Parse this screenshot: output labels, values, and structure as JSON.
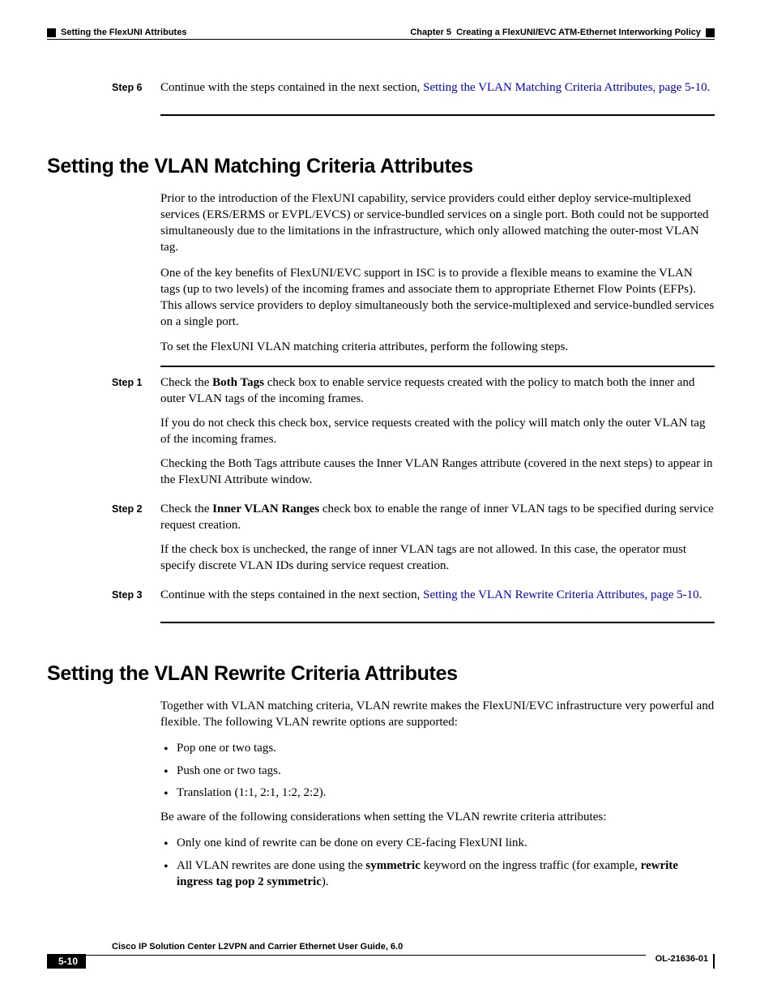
{
  "header": {
    "section_title": "Setting the FlexUNI Attributes",
    "chapter_label": "Chapter 5",
    "chapter_title": "Creating a FlexUNI/EVC ATM-Ethernet Interworking Policy"
  },
  "top_step": {
    "label": "Step 6",
    "text_prefix": "Continue with the steps contained in the next section, ",
    "link_text": "Setting the VLAN Matching Criteria Attributes, page 5-10",
    "text_suffix": "."
  },
  "section1": {
    "heading": "Setting the VLAN Matching Criteria Attributes",
    "para1": "Prior to the introduction of the FlexUNI capability, service providers could either deploy service-multiplexed services (ERS/ERMS or EVPL/EVCS) or service-bundled services on a single port. Both could not be supported simultaneously due to the limitations in the infrastructure, which only allowed matching the outer-most VLAN tag.",
    "para2": "One of the key benefits of FlexUNI/EVC support in ISC is to provide a flexible means to examine the VLAN tags (up to two levels) of the incoming frames and associate them to appropriate Ethernet Flow Points (EFPs). This allows service providers to deploy simultaneously both the service-multiplexed and service-bundled services on a single port.",
    "para3": "To set the FlexUNI VLAN matching criteria attributes, perform the following steps.",
    "steps": [
      {
        "label": "Step 1",
        "p1_pre": "Check the ",
        "p1_bold": "Both Tags",
        "p1_post": " check box to enable service requests created with the policy to match both the inner and outer VLAN tags of the incoming frames.",
        "p2": "If you do not check this check box, service requests created with the policy will match only the outer VLAN tag of the incoming frames.",
        "p3": "Checking the Both Tags attribute causes the Inner VLAN Ranges attribute (covered in the next steps) to appear in the FlexUNI Attribute window."
      },
      {
        "label": "Step 2",
        "p1_pre": "Check the ",
        "p1_bold": "Inner VLAN Ranges",
        "p1_post": " check box to enable the range of inner VLAN tags to be specified during service request creation.",
        "p2": "If the check box is unchecked, the range of inner VLAN tags are not allowed. In this case, the operator must specify discrete VLAN IDs during service request creation."
      },
      {
        "label": "Step 3",
        "p1_pre": "Continue with the steps contained in the next section, ",
        "link_text": "Setting the VLAN Rewrite Criteria Attributes, page 5-10",
        "p1_post": "."
      }
    ]
  },
  "section2": {
    "heading": "Setting the VLAN Rewrite Criteria Attributes",
    "para1": "Together with VLAN matching criteria, VLAN rewrite makes the FlexUNI/EVC infrastructure very powerful and flexible. The following VLAN rewrite options are supported:",
    "bullets1": [
      "Pop one or two tags.",
      "Push one or two tags.",
      "Translation (1:1, 2:1, 1:2, 2:2)."
    ],
    "para2": "Be aware of the following considerations when setting the VLAN rewrite criteria attributes:",
    "bullets2": [
      {
        "plain": "Only one kind of rewrite can be done on every CE-facing FlexUNI link."
      },
      {
        "pre": "All VLAN rewrites are done using the ",
        "bold1": "symmetric",
        "mid": " keyword on the ingress traffic (for example, ",
        "bold2": "rewrite ingress tag pop 2 symmetric",
        "post": ")."
      }
    ]
  },
  "footer": {
    "doc_title": "Cisco IP Solution Center L2VPN and Carrier Ethernet User Guide, 6.0",
    "page_num": "5-10",
    "doc_id": "OL-21636-01"
  }
}
